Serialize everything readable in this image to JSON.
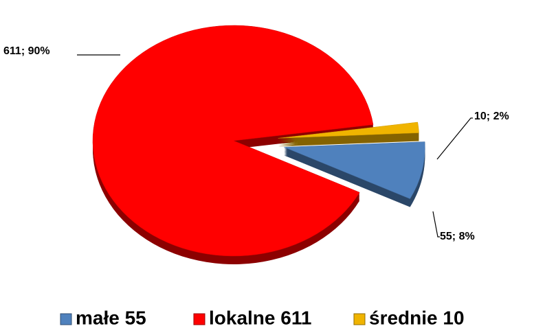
{
  "chart_data": {
    "type": "pie",
    "categories": [
      "małe 55",
      "lokalne 611",
      "średnie 10"
    ],
    "values": [
      55,
      611,
      10
    ],
    "value_labels": [
      "55; 8%",
      "611; 90%",
      "10; 2%"
    ],
    "colors": [
      "#4f81bd",
      "#ff0000",
      "#f0b400"
    ],
    "legend": "bottom"
  }
}
